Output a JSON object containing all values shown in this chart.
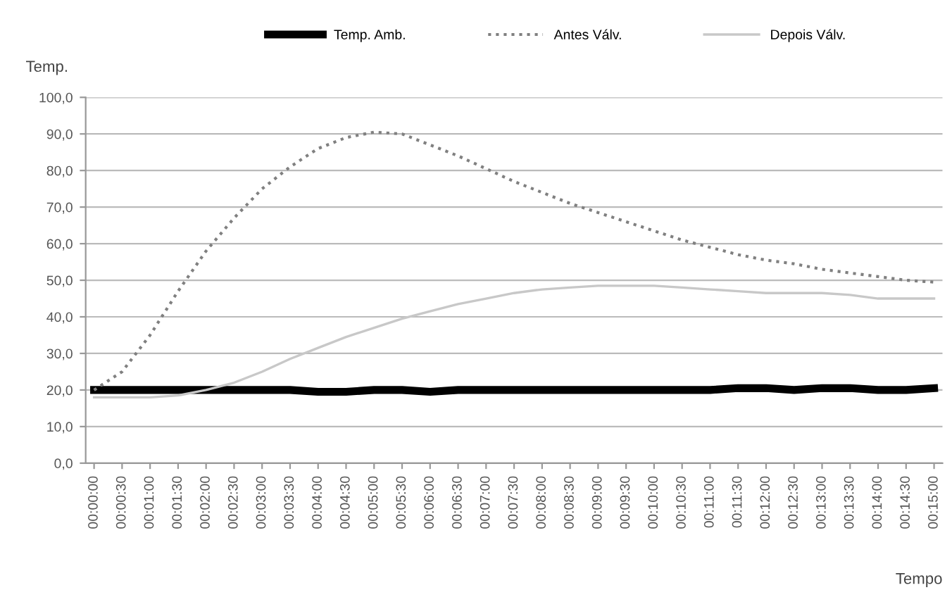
{
  "chart_data": {
    "type": "line",
    "ylabel": "Temp.",
    "xlabel": "Tempo",
    "categories": [
      "00:00:00",
      "00:00:30",
      "00:01:00",
      "00:01:30",
      "00:02:00",
      "00:02:30",
      "00:03:00",
      "00:03:30",
      "00:04:00",
      "00:04:30",
      "00:05:00",
      "00:05:30",
      "00:06:00",
      "00:06:30",
      "00:07:00",
      "00:07:30",
      "00:08:00",
      "00:08:30",
      "00:09:00",
      "00:09:30",
      "00:10:00",
      "00:10:30",
      "00:11:00",
      "00:11:30",
      "00:12:00",
      "00:12:30",
      "00:13:00",
      "00:13:30",
      "00:14:00",
      "00:14:30",
      "00:15:00"
    ],
    "series": [
      {
        "name": "Temp. Amb.",
        "color": "#000000",
        "line_style": "solid",
        "values": [
          20,
          20,
          20,
          20,
          20,
          20,
          20,
          20,
          19.5,
          19.5,
          20,
          20,
          19.5,
          20,
          20,
          20,
          20,
          20,
          20,
          20,
          20,
          20,
          20,
          20.5,
          20.5,
          20,
          20.5,
          20.5,
          20,
          20,
          20.5
        ]
      },
      {
        "name": "Antes Válv.",
        "color": "#808080",
        "line_style": "dotted",
        "values": [
          20,
          25,
          35,
          47,
          58,
          67,
          75,
          81,
          86,
          89,
          90.5,
          90,
          87,
          84,
          80.5,
          77,
          74,
          71,
          68.5,
          66,
          63.5,
          61,
          59,
          57,
          55.5,
          54.5,
          53,
          52,
          51,
          50,
          49.5
        ]
      },
      {
        "name": "Depois Válv.",
        "color": "#c8c8c8",
        "line_style": "solid",
        "values": [
          18,
          18,
          18,
          18.5,
          20,
          22,
          25,
          28.5,
          31.5,
          34.5,
          37,
          39.5,
          41.5,
          43.5,
          45,
          46.5,
          47.5,
          48,
          48.5,
          48.5,
          48.5,
          48,
          47.5,
          47,
          46.5,
          46.5,
          46.5,
          46,
          45,
          45,
          45
        ]
      }
    ],
    "ylim": [
      0,
      100
    ],
    "yticks": [
      {
        "value": 0,
        "label": "0,0"
      },
      {
        "value": 10,
        "label": "10,0"
      },
      {
        "value": 20,
        "label": "20,0"
      },
      {
        "value": 30,
        "label": "30,0"
      },
      {
        "value": 40,
        "label": "40,0"
      },
      {
        "value": 50,
        "label": "50,0"
      },
      {
        "value": 60,
        "label": "60,0"
      },
      {
        "value": 70,
        "label": "70,0"
      },
      {
        "value": 80,
        "label": "80,0"
      },
      {
        "value": 90,
        "label": "90,0"
      },
      {
        "value": 100,
        "label": "100,0"
      }
    ],
    "grid": "y",
    "legend": "top",
    "marker": "none"
  }
}
